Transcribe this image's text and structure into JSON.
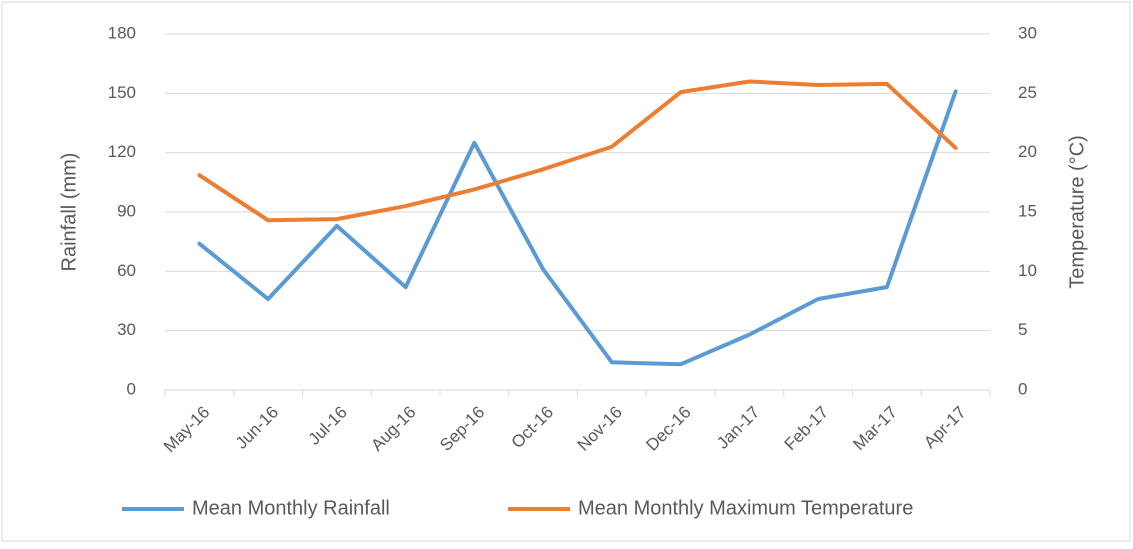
{
  "chart_data": {
    "type": "line",
    "categories": [
      "May-16",
      "Jun-16",
      "Jul-16",
      "Aug-16",
      "Sep-16",
      "Oct-16",
      "Nov-16",
      "Dec-16",
      "Jan-17",
      "Feb-17",
      "Mar-17",
      "Apr-17"
    ],
    "series": [
      {
        "name": "Mean Monthly Rainfall",
        "color": "#5b9bd5",
        "values": [
          74,
          46,
          83,
          52,
          125,
          61,
          14,
          13,
          28,
          46,
          52,
          151
        ]
      },
      {
        "name": "Mean Monthly Maximum Temperature",
        "color": "#ed7d31",
        "axis": "y2",
        "values": [
          18.1,
          14.3,
          14.4,
          15.5,
          16.9,
          18.6,
          20.5,
          25.1,
          26.0,
          25.7,
          25.8,
          20.4
        ]
      }
    ],
    "ylabel": "Rainfall (mm)",
    "y2label": "Temperature (°C)",
    "ylim": [
      0,
      180
    ],
    "yticks": [
      0,
      30,
      60,
      90,
      120,
      150,
      180
    ],
    "y2lim": [
      0,
      30
    ],
    "y2ticks": [
      0,
      5,
      10,
      15,
      20,
      25,
      30
    ],
    "grid": true,
    "legend": "bottom"
  }
}
